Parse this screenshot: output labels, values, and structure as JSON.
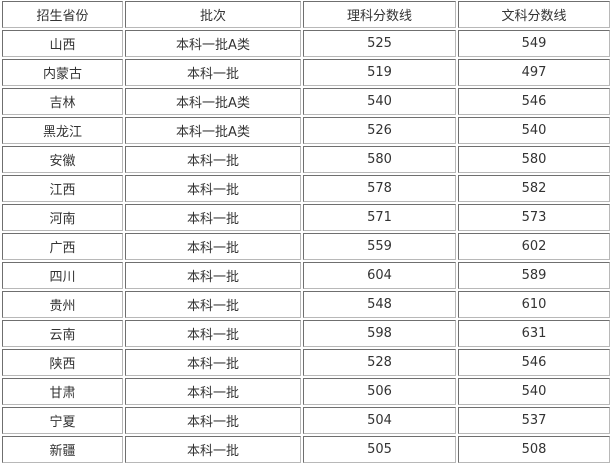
{
  "table": {
    "headers": [
      "招生省份",
      "批次",
      "理科分数线",
      "文科分数线"
    ],
    "rows": [
      [
        "山西",
        "本科一批A类",
        "525",
        "549"
      ],
      [
        "内蒙古",
        "本科一批",
        "519",
        "497"
      ],
      [
        "吉林",
        "本科一批A类",
        "540",
        "546"
      ],
      [
        "黑龙江",
        "本科一批A类",
        "526",
        "540"
      ],
      [
        "安徽",
        "本科一批",
        "580",
        "580"
      ],
      [
        "江西",
        "本科一批",
        "578",
        "582"
      ],
      [
        "河南",
        "本科一批",
        "571",
        "573"
      ],
      [
        "广西",
        "本科一批",
        "559",
        "602"
      ],
      [
        "四川",
        "本科一批",
        "604",
        "589"
      ],
      [
        "贵州",
        "本科一批",
        "548",
        "610"
      ],
      [
        "云南",
        "本科一批",
        "598",
        "631"
      ],
      [
        "陕西",
        "本科一批",
        "528",
        "546"
      ],
      [
        "甘肃",
        "本科一批",
        "506",
        "540"
      ],
      [
        "宁夏",
        "本科一批",
        "504",
        "537"
      ],
      [
        "新疆",
        "本科一批",
        "505",
        "508"
      ]
    ]
  }
}
